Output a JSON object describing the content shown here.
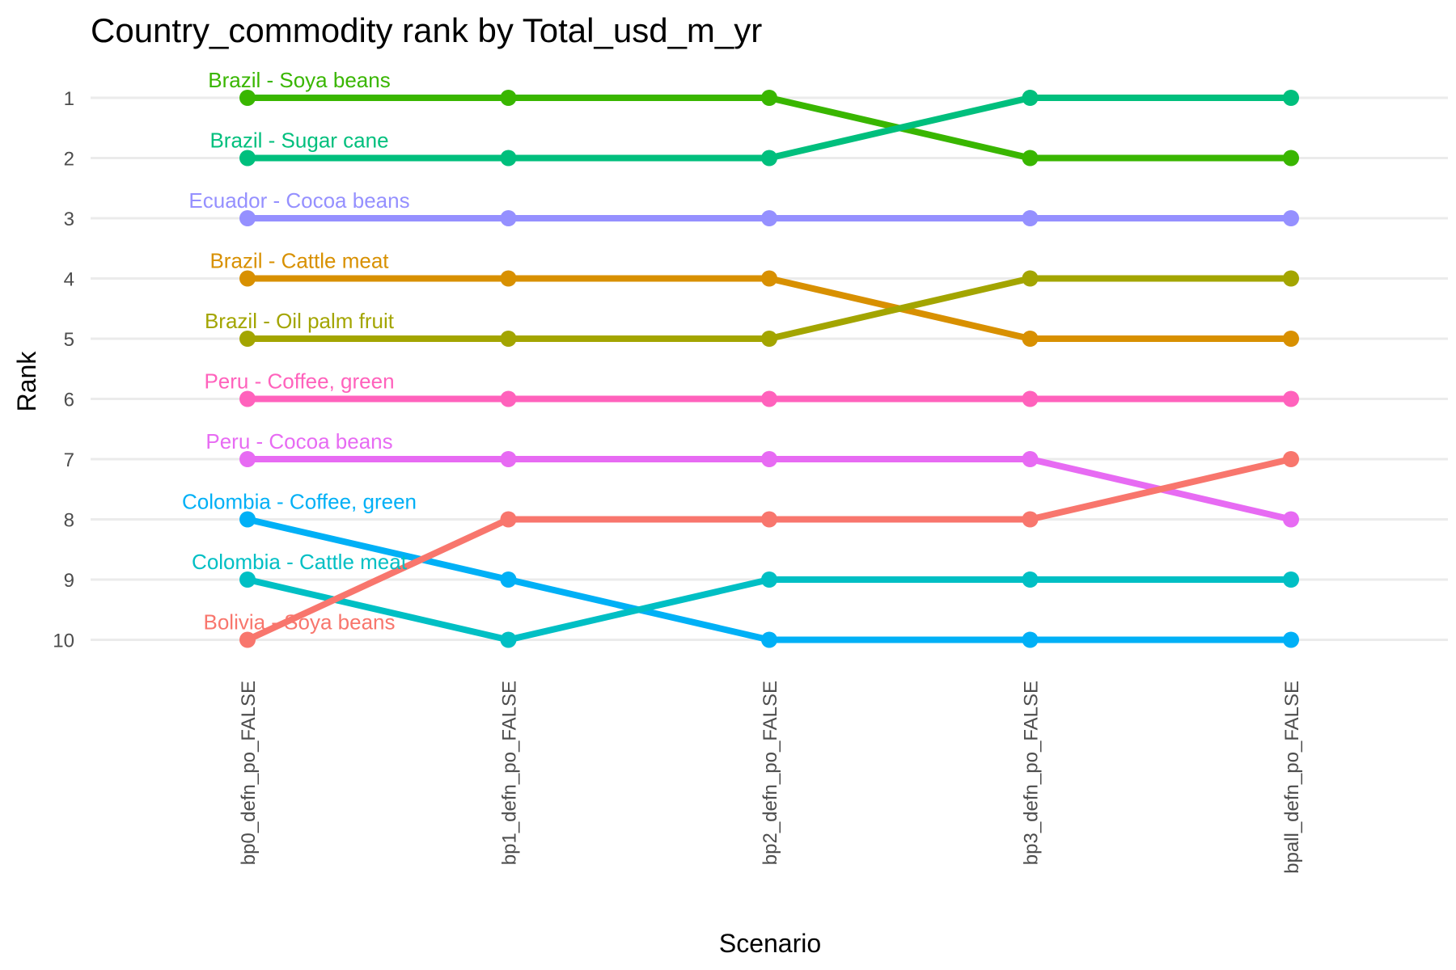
{
  "chart_data": {
    "type": "line",
    "title": "Country_commodity rank by Total_usd_m_yr",
    "xlabel": "Scenario",
    "ylabel": "Rank",
    "categories": [
      "bp0_defn_po_FALSE",
      "bp1_defn_po_FALSE",
      "bp2_defn_po_FALSE",
      "bp3_defn_po_FALSE",
      "bpall_defn_po_FALSE"
    ],
    "y_ticks": [
      "1",
      "2",
      "3",
      "4",
      "5",
      "6",
      "7",
      "8",
      "9",
      "10"
    ],
    "ylim": [
      10,
      1
    ],
    "y_reversed": true,
    "grid": true,
    "legend": "none (labels at first point)",
    "series": [
      {
        "name": "Brazil - Soya beans",
        "color": "#39B600",
        "values": [
          1,
          1,
          1,
          2,
          2
        ]
      },
      {
        "name": "Brazil - Sugar cane",
        "color": "#00BF7D",
        "values": [
          2,
          2,
          2,
          1,
          1
        ]
      },
      {
        "name": "Ecuador - Cocoa beans",
        "color": "#9590FF",
        "values": [
          3,
          3,
          3,
          3,
          3
        ]
      },
      {
        "name": "Brazil - Cattle meat",
        "color": "#D89000",
        "values": [
          4,
          4,
          4,
          5,
          5
        ]
      },
      {
        "name": "Brazil - Oil palm fruit",
        "color": "#A3A500",
        "values": [
          5,
          5,
          5,
          4,
          4
        ]
      },
      {
        "name": "Peru - Coffee, green",
        "color": "#FF62BC",
        "values": [
          6,
          6,
          6,
          6,
          6
        ]
      },
      {
        "name": "Peru - Cocoa beans",
        "color": "#E76BF3",
        "values": [
          7,
          7,
          7,
          7,
          8
        ]
      },
      {
        "name": "Colombia - Coffee, green",
        "color": "#00B0F6",
        "values": [
          8,
          9,
          10,
          10,
          10
        ]
      },
      {
        "name": "Colombia - Cattle meat",
        "color": "#00BFC4",
        "values": [
          9,
          10,
          9,
          9,
          9
        ]
      },
      {
        "name": "Bolivia - Soya beans",
        "color": "#F8766D",
        "values": [
          10,
          8,
          8,
          8,
          7
        ]
      }
    ]
  }
}
